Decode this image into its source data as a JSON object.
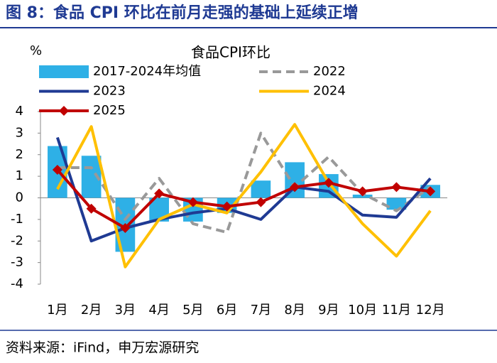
{
  "header": {
    "title": "图 8：食品 CPI 环比在前月走强的基础上延续正增"
  },
  "footer": {
    "source": "资料来源：iFind，申万宏源研究"
  },
  "chart_data": {
    "type": "combo",
    "title": "食品CPI环比",
    "y_label": "%",
    "categories": [
      "1月",
      "2月",
      "3月",
      "4月",
      "5月",
      "6月",
      "7月",
      "8月",
      "9月",
      "10月",
      "11月",
      "12月"
    ],
    "ylim": [
      -4,
      4
    ],
    "yticks": [
      -4,
      -3,
      -2,
      -1,
      0,
      1,
      2,
      3,
      4
    ],
    "grid": false,
    "series": [
      {
        "name": "2017-2024年均值",
        "type": "bar",
        "color": "#2eb0e6",
        "values": [
          2.4,
          1.95,
          -2.5,
          -1.1,
          -1.1,
          -0.7,
          0.8,
          1.65,
          1.1,
          0.15,
          -0.55,
          0.6
        ]
      },
      {
        "name": "2022",
        "type": "line",
        "style": "dashed",
        "color": "#999999",
        "values": [
          1.4,
          1.4,
          -1.0,
          0.9,
          -1.2,
          -1.6,
          3.0,
          0.5,
          1.9,
          0.2,
          -0.6,
          0.5
        ]
      },
      {
        "name": "2023",
        "type": "line",
        "style": "solid",
        "color": "#1f3a93",
        "values": [
          2.8,
          -2.0,
          -1.4,
          -1.0,
          -0.7,
          -0.5,
          -1.0,
          0.5,
          0.3,
          -0.8,
          -0.9,
          0.9
        ]
      },
      {
        "name": "2024",
        "type": "line",
        "style": "solid",
        "color": "#ffc000",
        "values": [
          0.4,
          3.3,
          -3.2,
          -1.0,
          -0.3,
          -0.7,
          1.2,
          3.4,
          0.7,
          -1.2,
          -2.7,
          -0.6
        ]
      },
      {
        "name": "2025",
        "type": "line",
        "style": "solid",
        "marker": "diamond",
        "color": "#c00000",
        "values": [
          1.3,
          -0.5,
          -1.4,
          0.2,
          -0.2,
          -0.4,
          -0.2,
          0.5,
          0.7,
          0.3,
          0.5,
          0.3
        ]
      }
    ]
  }
}
